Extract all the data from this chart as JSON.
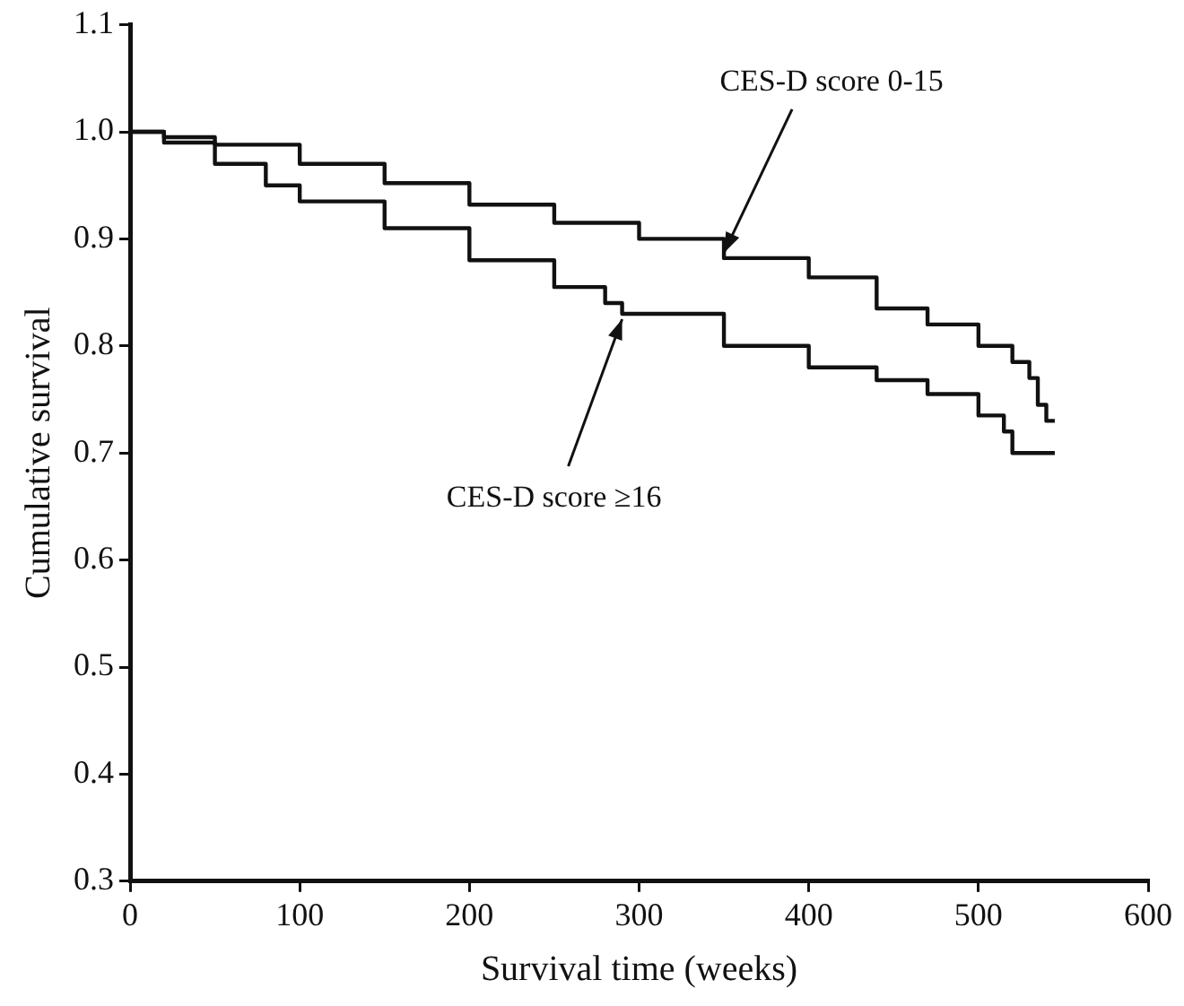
{
  "chart_data": {
    "type": "step",
    "xlabel": "Survival time (weeks)",
    "ylabel": "Cumulative survival",
    "xlim": [
      0,
      600
    ],
    "xticks": [
      0,
      100,
      200,
      300,
      400,
      500,
      600
    ],
    "ylim": [
      0.3,
      1.1
    ],
    "yticks": [
      0.3,
      0.4,
      0.5,
      0.6,
      0.7,
      0.8,
      0.9,
      {
        "value": 1,
        "label": "1.0"
      },
      1.1
    ],
    "grid": false,
    "legend": false,
    "marker": "none",
    "line_style": "solid",
    "series": [
      {
        "name": "CES-D score 0-15",
        "color": "#111111",
        "x": [
          0,
          20,
          50,
          100,
          150,
          200,
          250,
          300,
          350,
          400,
          440,
          470,
          500,
          520,
          530,
          535,
          540,
          545
        ],
        "values": [
          1.0,
          0.995,
          0.988,
          0.97,
          0.952,
          0.932,
          0.915,
          0.9,
          0.882,
          0.864,
          0.835,
          0.82,
          0.8,
          0.785,
          0.77,
          0.745,
          0.73,
          0.73
        ]
      },
      {
        "name": "CES-D score ≥16",
        "color": "#111111",
        "x": [
          0,
          20,
          50,
          80,
          100,
          150,
          200,
          250,
          280,
          290,
          300,
          350,
          400,
          440,
          470,
          500,
          515,
          520,
          545
        ],
        "values": [
          1.0,
          0.99,
          0.97,
          0.95,
          0.935,
          0.91,
          0.88,
          0.855,
          0.84,
          0.83,
          0.83,
          0.8,
          0.78,
          0.768,
          0.755,
          0.735,
          0.72,
          0.7,
          0.7
        ]
      }
    ]
  }
}
